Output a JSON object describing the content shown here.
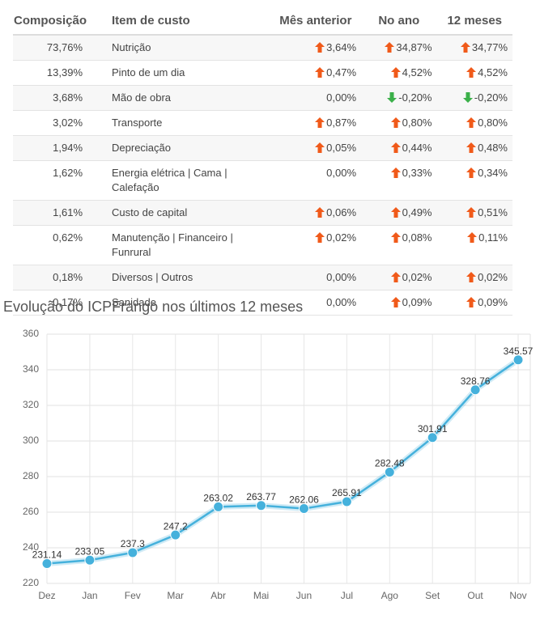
{
  "table": {
    "columns": [
      "Composição",
      "Item de custo",
      "Mês anterior",
      "No ano",
      "12 meses"
    ],
    "rows": [
      [
        "73,76%",
        "Nutrição",
        "3,64%",
        "34,87%",
        "34,77%"
      ],
      [
        "13,39%",
        "Pinto de um dia",
        "0,47%",
        "4,52%",
        "4,52%"
      ],
      [
        "3,68%",
        "Mão de obra",
        "0,00%",
        "-0,20%",
        "-0,20%"
      ],
      [
        "3,02%",
        "Transporte",
        "0,87%",
        "0,80%",
        "0,80%"
      ],
      [
        "1,94%",
        "Depreciação",
        "0,05%",
        "0,44%",
        "0,48%"
      ],
      [
        "1,62%",
        "Energia elétrica | Cama | Calefação",
        "0,00%",
        "0,33%",
        "0,34%"
      ],
      [
        "1,61%",
        "Custo de capital",
        "0,06%",
        "0,49%",
        "0,51%"
      ],
      [
        "0,62%",
        "Manutenção | Financeiro | Funrural",
        "0,02%",
        "0,08%",
        "0,11%"
      ],
      [
        "0,18%",
        "Diversos | Outros",
        "0,00%",
        "0,02%",
        "0,02%"
      ],
      [
        "0,17%",
        "Sanidade",
        "0,00%",
        "0,09%",
        "0,09%"
      ]
    ]
  },
  "chart_data": {
    "type": "line",
    "title": "Evolução do ICPFrango nos últimos 12 meses",
    "categories": [
      "Dez",
      "Jan",
      "Fev",
      "Mar",
      "Abr",
      "Mai",
      "Jun",
      "Jul",
      "Ago",
      "Set",
      "Out",
      "Nov"
    ],
    "values": [
      231.14,
      233.05,
      237.3,
      247.2,
      263.02,
      263.77,
      262.06,
      265.91,
      282.48,
      301.91,
      328.76,
      345.57
    ],
    "color": "#45b1dc",
    "ylim": [
      220,
      360
    ],
    "yticks": [
      220,
      240,
      260,
      280,
      300,
      320,
      340,
      360
    ],
    "grid": true
  }
}
